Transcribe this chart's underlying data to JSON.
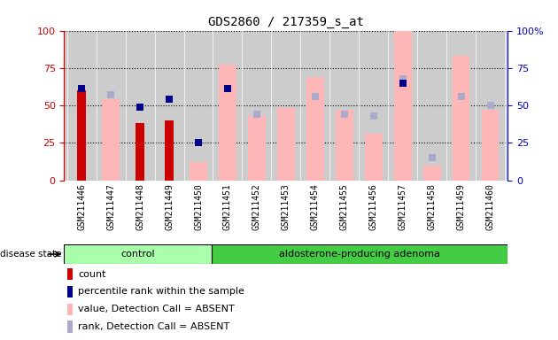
{
  "title": "GDS2860 / 217359_s_at",
  "samples": [
    "GSM211446",
    "GSM211447",
    "GSM211448",
    "GSM211449",
    "GSM211450",
    "GSM211451",
    "GSM211452",
    "GSM211453",
    "GSM211454",
    "GSM211455",
    "GSM211456",
    "GSM211457",
    "GSM211458",
    "GSM211459",
    "GSM211460"
  ],
  "count": [
    60,
    0,
    38,
    40,
    0,
    0,
    0,
    0,
    0,
    0,
    0,
    0,
    0,
    0,
    0
  ],
  "percentile_rank": [
    61,
    0,
    49,
    54,
    25,
    61,
    0,
    0,
    0,
    0,
    0,
    65,
    0,
    0,
    0
  ],
  "value_absent": [
    0,
    54,
    0,
    0,
    12,
    77,
    43,
    48,
    69,
    47,
    31,
    100,
    10,
    83,
    47
  ],
  "rank_absent": [
    0,
    57,
    0,
    0,
    0,
    0,
    44,
    0,
    56,
    44,
    43,
    68,
    15,
    56,
    50
  ],
  "n_control": 5,
  "n_total": 15,
  "color_count": "#cc0000",
  "color_rank": "#00008b",
  "color_value_absent": "#ffb6b6",
  "color_rank_absent": "#aaaacc",
  "color_control_bg": "#aaffaa",
  "color_adenoma_bg": "#44cc44",
  "color_plot_bg": "#cccccc",
  "color_left_axis": "#cc0000",
  "color_right_axis": "#0000cc",
  "ylim": [
    0,
    100
  ],
  "legend_items": [
    "count",
    "percentile rank within the sample",
    "value, Detection Call = ABSENT",
    "rank, Detection Call = ABSENT"
  ]
}
